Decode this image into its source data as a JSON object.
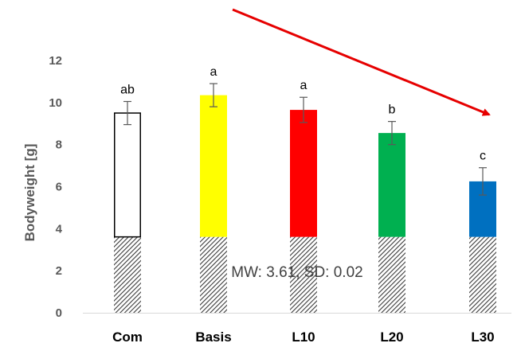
{
  "chart_data": {
    "type": "bar",
    "categories": [
      "Com",
      "Basis",
      "L10",
      "L20",
      "L30"
    ],
    "values": [
      9.5,
      10.35,
      9.65,
      8.55,
      6.25
    ],
    "errors": [
      0.55,
      0.55,
      0.6,
      0.55,
      0.65
    ],
    "significance": [
      "ab",
      "a",
      "a",
      "b",
      "c"
    ],
    "bar_colors": [
      "#ffffff",
      "#ffff00",
      "#ff0000",
      "#00b050",
      "#0070c0"
    ],
    "bar_border_colors": [
      "#000000",
      "#ffff00",
      "#ff0000",
      "#00b050",
      "#0070c0"
    ],
    "baseline": {
      "value": 3.61,
      "label": "MW: 3.61, SD: 0.02",
      "pattern": "hatched"
    },
    "ylabel": "Bodyweight [g]",
    "xlabel": "",
    "title": "",
    "ylim": [
      0,
      12
    ],
    "yticks": [
      0,
      2,
      4,
      6,
      8,
      10,
      12
    ],
    "grid": false,
    "legend": "none",
    "trend_arrow": {
      "color": "#e60000",
      "direction": "down-right"
    }
  }
}
